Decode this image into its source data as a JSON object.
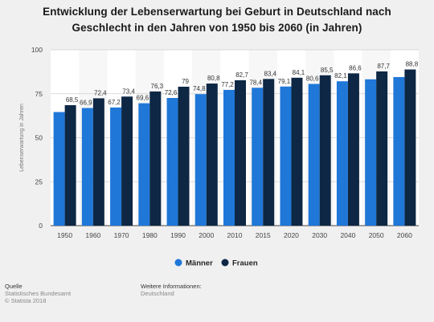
{
  "title_line1": "Entwicklung der Lebenserwartung bei Geburt in Deutschland nach",
  "title_line2": "Geschlecht in den Jahren von 1950 bis 2060 (in Jahren)",
  "source": {
    "label": "Quelle",
    "line1": "Statistisches Bundesamt",
    "line2": "© Statista 2018"
  },
  "more_info": {
    "label": "Weitere Informationen:",
    "line1": "Deutschland"
  },
  "colors": {
    "maenner": "#1f77d8",
    "frauen": "#0d2744",
    "grid": "#d0d0d0",
    "band": "#f7f7f7"
  },
  "chart_data": {
    "type": "bar",
    "ylabel": "Lebenserwartung in Jahren",
    "ylim": [
      0,
      100
    ],
    "yticks": [
      0,
      25,
      50,
      75,
      100
    ],
    "grid": true,
    "legend": "bottom-center",
    "categories": [
      "1950",
      "1960",
      "1970",
      "1980",
      "1990",
      "2000",
      "2010",
      "2015",
      "2020",
      "2030",
      "2040",
      "2050",
      "2060"
    ],
    "series": [
      {
        "name": "Männer",
        "values": [
          64.6,
          66.9,
          67.2,
          69.6,
          72.6,
          74.8,
          77.2,
          78.4,
          79.1,
          80.6,
          82.1,
          83.2,
          84.5
        ],
        "labels": [
          "",
          "66,9",
          "67,2",
          "69,6",
          "72,6",
          "74,8",
          "77,2",
          "78,4",
          "79,1",
          "80,6",
          "82,1",
          "",
          ""
        ]
      },
      {
        "name": "Frauen",
        "values": [
          68.5,
          72.4,
          73.4,
          76.3,
          79,
          80.8,
          82.7,
          83.4,
          84.1,
          85.5,
          86.6,
          87.7,
          88.8
        ],
        "labels": [
          "68,5",
          "72,4",
          "73,4",
          "76,3",
          "79",
          "80,8",
          "82,7",
          "83,4",
          "84,1",
          "85,5",
          "86,6",
          "87,7",
          "88,8"
        ]
      }
    ]
  }
}
